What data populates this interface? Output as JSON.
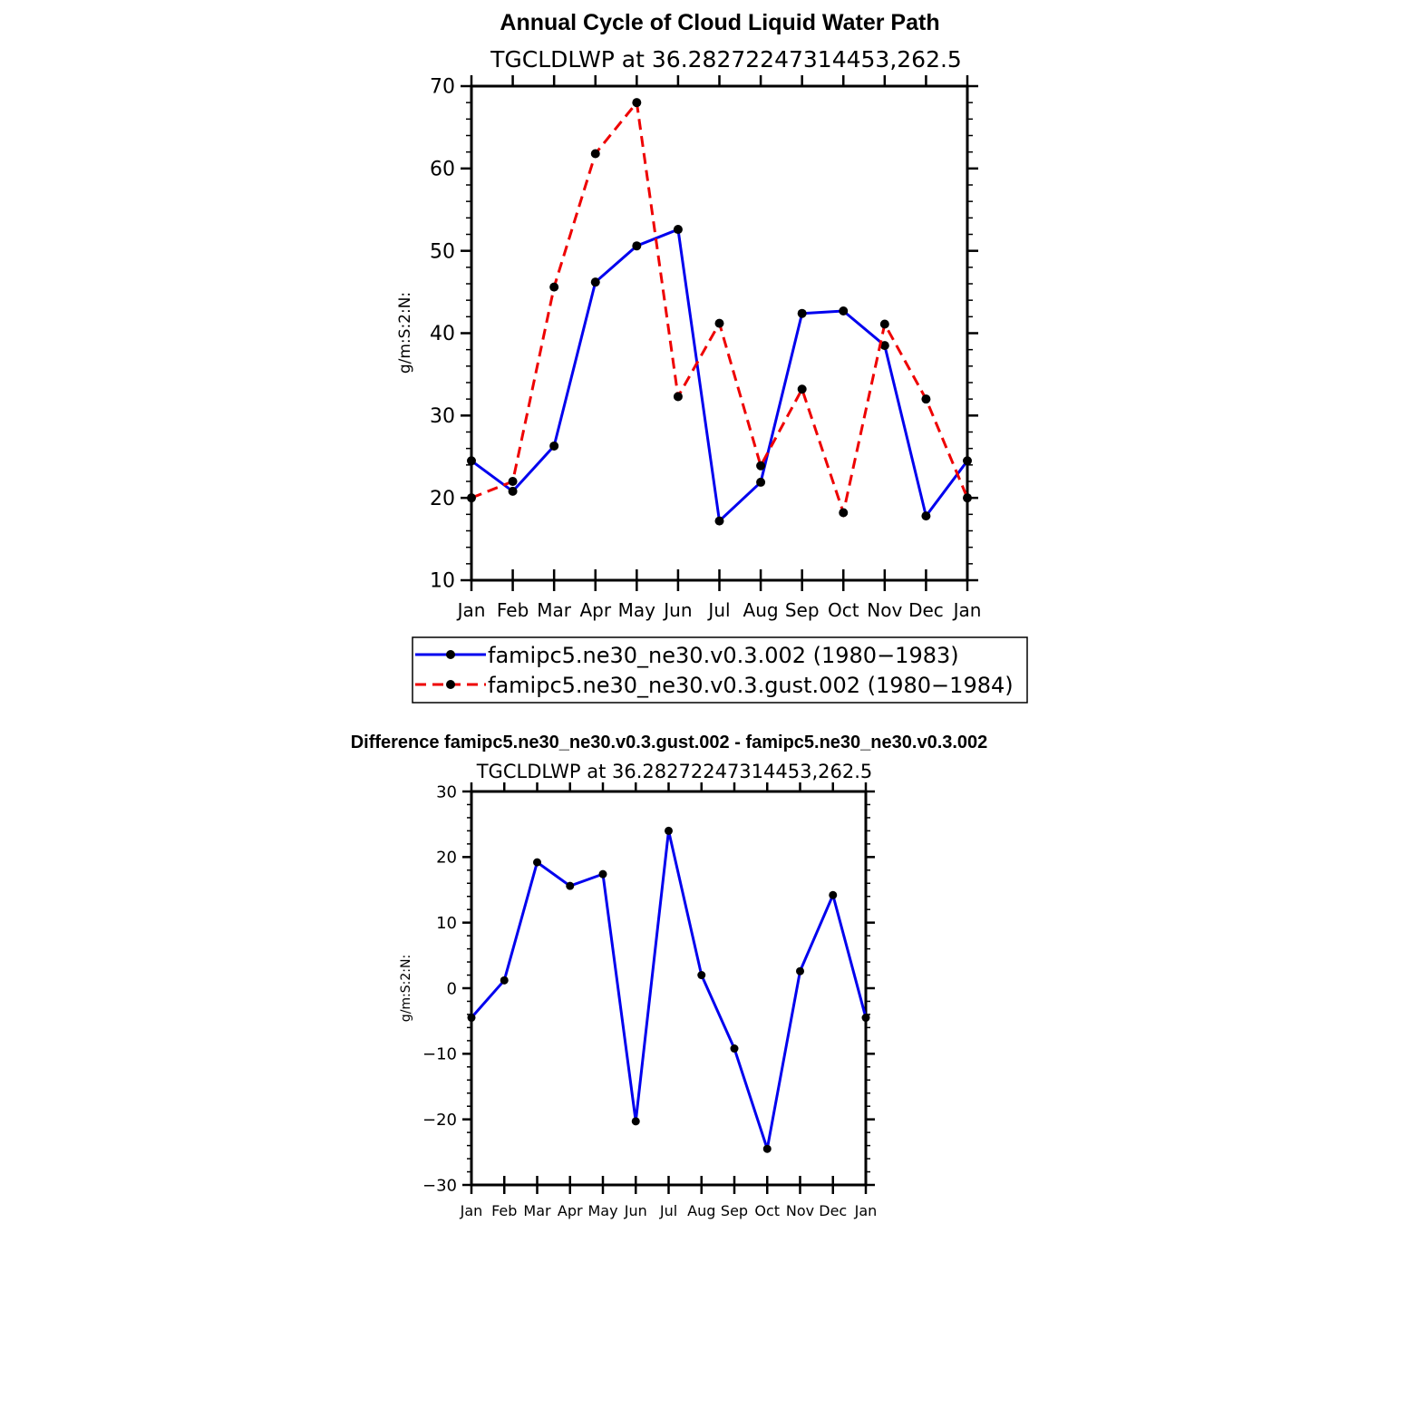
{
  "colors": {
    "series_model": "#0000ee",
    "series_gust": "#ee0000",
    "series_diff": "#0000ee",
    "axis": "#000000",
    "marker": "#000000"
  },
  "chart_data": [
    {
      "type": "line",
      "title": "Annual Cycle of Cloud Liquid Water Path",
      "subtitle": "TGCLDLWP at 36.28272247314453,262.5",
      "xlabel": "",
      "ylabel": "g/m:S:2:N:",
      "categories": [
        "Jan",
        "Feb",
        "Mar",
        "Apr",
        "May",
        "Jun",
        "Jul",
        "Aug",
        "Sep",
        "Oct",
        "Nov",
        "Dec",
        "Jan"
      ],
      "ylim": [
        10,
        70
      ],
      "yticks": [
        10,
        20,
        30,
        40,
        50,
        60,
        70
      ],
      "legend_position": "bottom",
      "series": [
        {
          "name": "famipc5.ne30_ne30.v0.3.002 (1980−1983)",
          "style": "solid",
          "values": [
            24.5,
            20.8,
            26.3,
            46.2,
            50.6,
            52.6,
            17.2,
            21.9,
            42.4,
            42.7,
            38.5,
            17.8,
            24.5
          ]
        },
        {
          "name": "famipc5.ne30_ne30.v0.3.gust.002 (1980−1984)",
          "style": "dashed",
          "values": [
            20.0,
            22.0,
            45.6,
            61.8,
            68.0,
            32.3,
            41.2,
            23.9,
            33.2,
            18.2,
            41.1,
            32.0,
            20.0
          ]
        }
      ]
    },
    {
      "type": "line",
      "title": "Difference famipc5.ne30_ne30.v0.3.gust.002 - famipc5.ne30_ne30.v0.3.002",
      "subtitle": "TGCLDLWP at 36.28272247314453,262.5",
      "xlabel": "",
      "ylabel": "g/m:S:2:N:",
      "categories": [
        "Jan",
        "Feb",
        "Mar",
        "Apr",
        "May",
        "Jun",
        "Jul",
        "Aug",
        "Sep",
        "Oct",
        "Nov",
        "Dec",
        "Jan"
      ],
      "ylim": [
        -30,
        30
      ],
      "yticks": [
        -30,
        -20,
        -10,
        0,
        10,
        20,
        30
      ],
      "ytick_labels": [
        "−30",
        "−20",
        "−10",
        "0",
        "10",
        "20",
        "30"
      ],
      "series": [
        {
          "name": "difference",
          "style": "solid",
          "values": [
            -4.5,
            1.2,
            19.2,
            15.6,
            17.4,
            -20.3,
            24.0,
            2.0,
            -9.2,
            -24.5,
            2.6,
            14.2,
            -4.5
          ]
        }
      ]
    }
  ]
}
